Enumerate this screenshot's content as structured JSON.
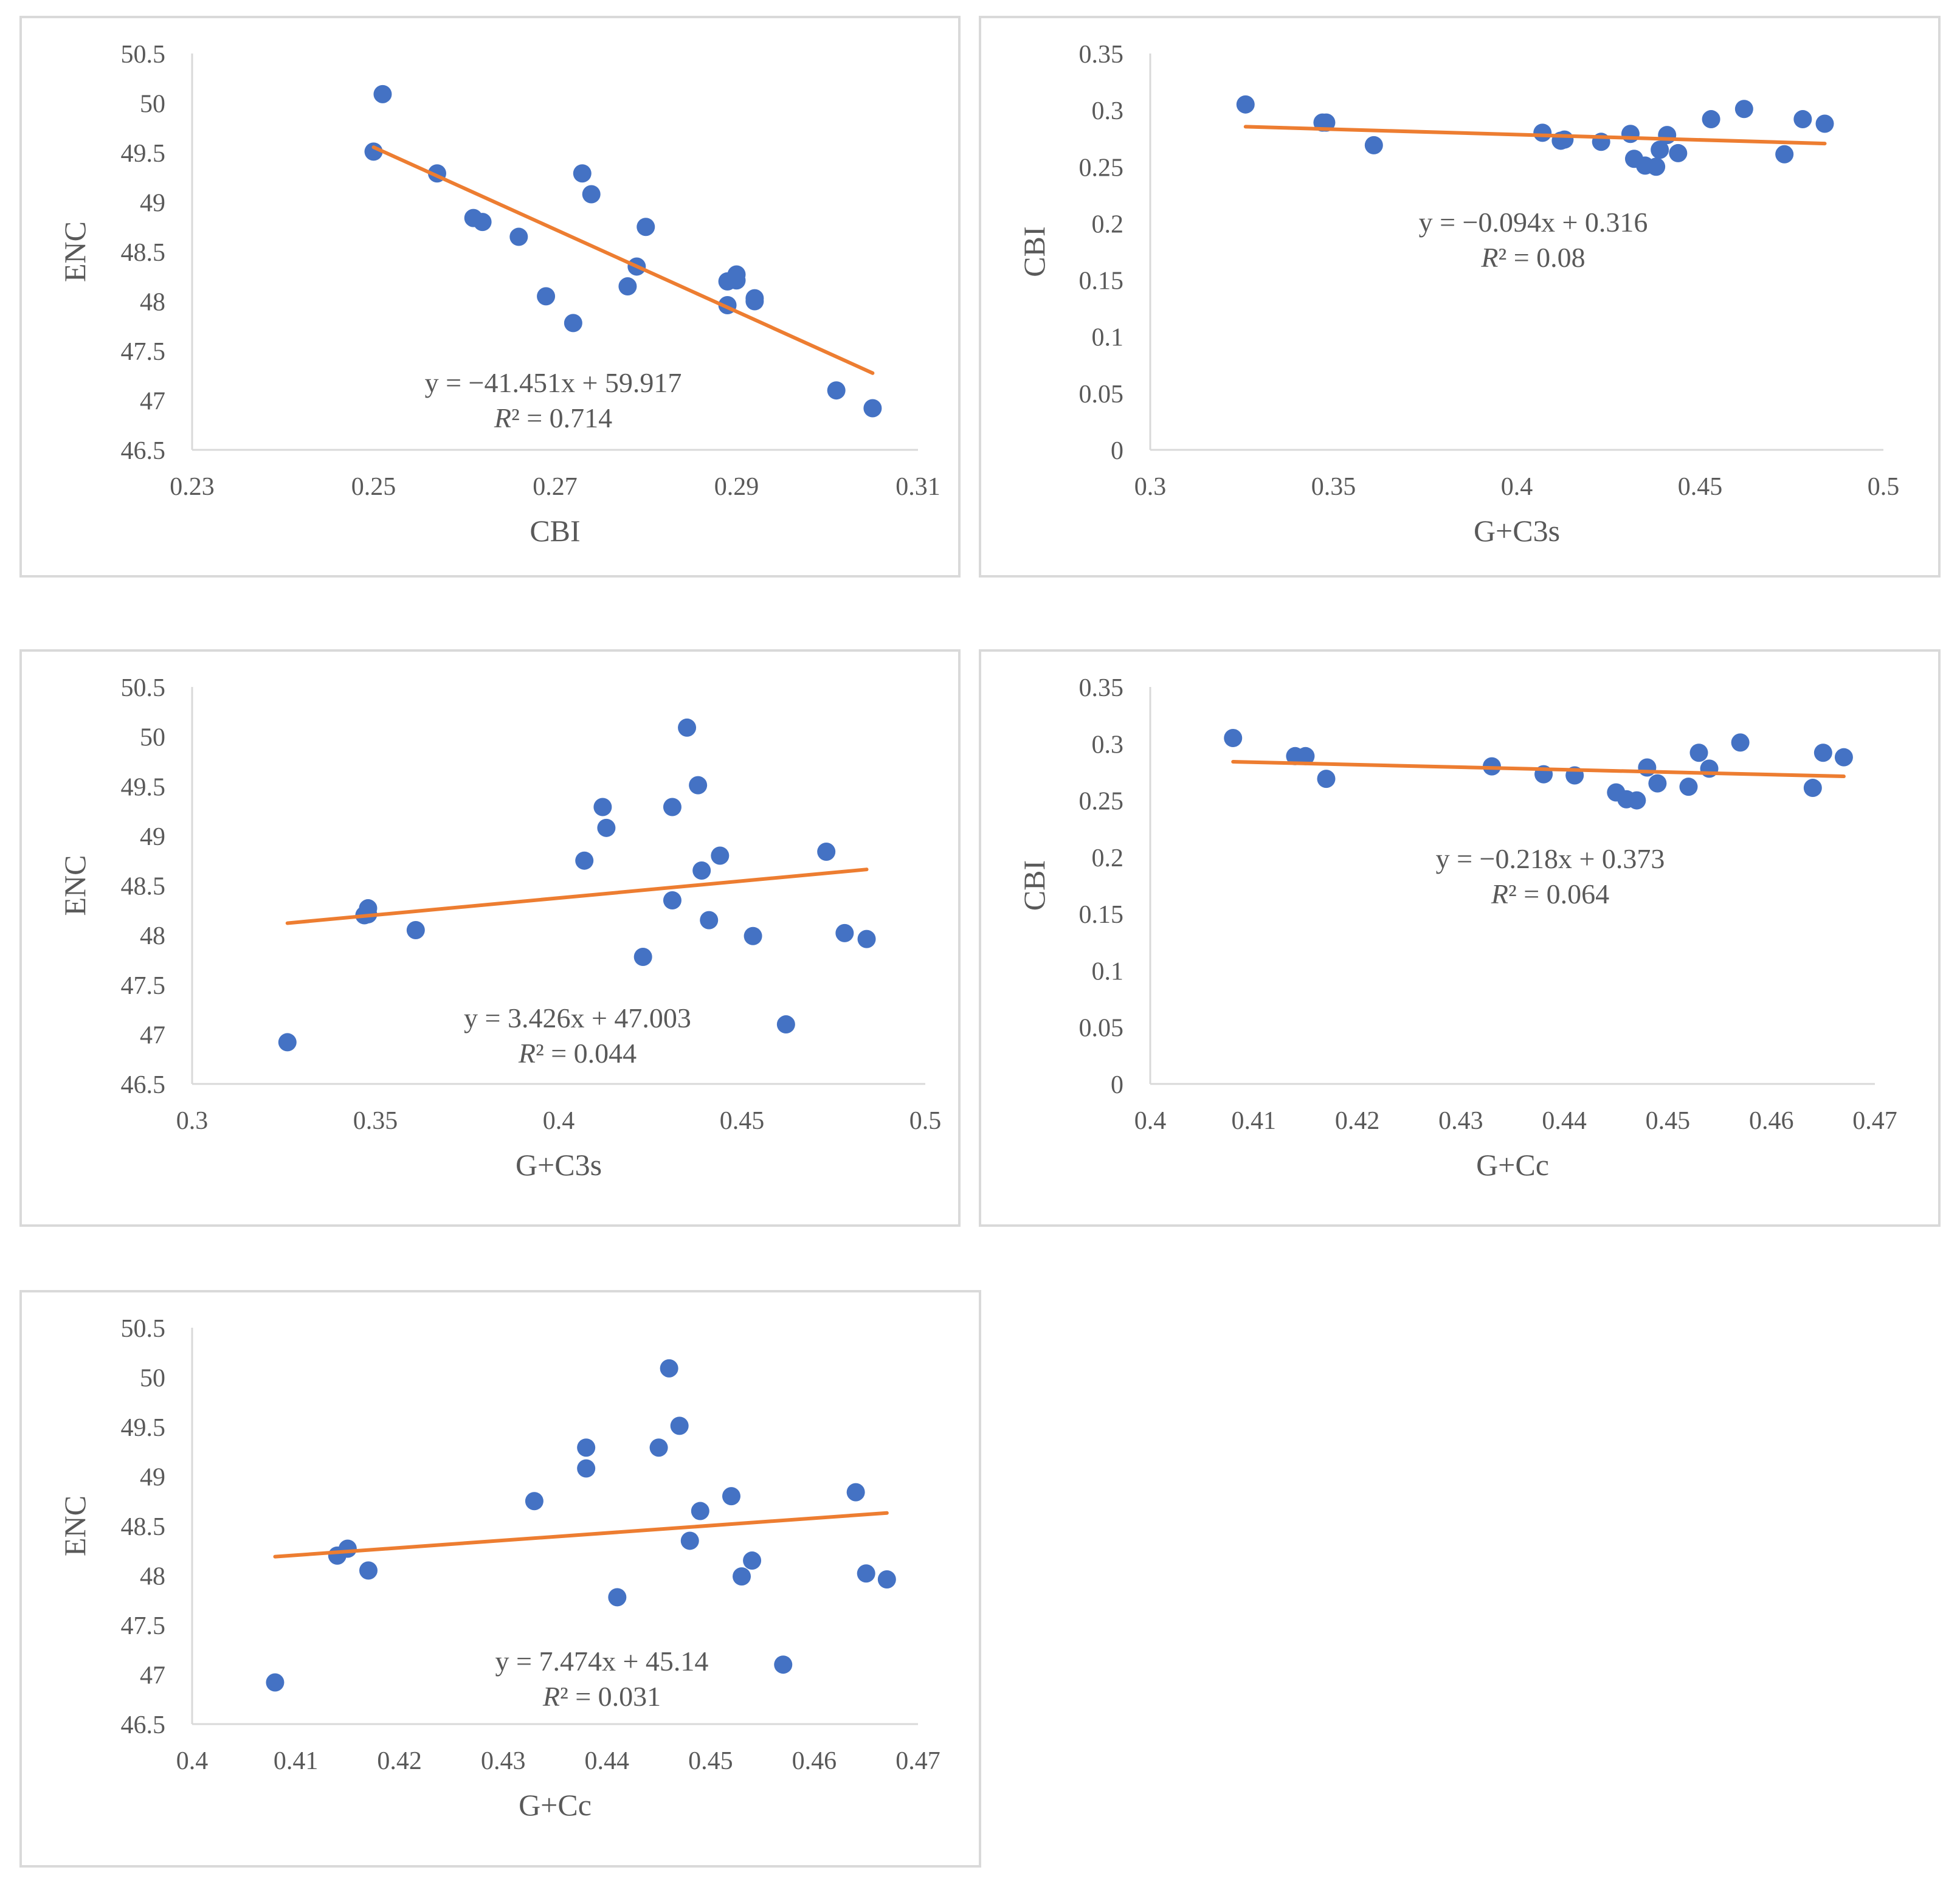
{
  "colors": {
    "points": "#4472c4",
    "trendline": "#ed7d31",
    "text": "#595959",
    "axis": "#d9d9d9"
  },
  "chart_data": [
    {
      "type": "scatter",
      "xlabel": "CBI",
      "ylabel": "ENC",
      "xlim": [
        0.23,
        0.31
      ],
      "ylim": [
        46.5,
        50.5
      ],
      "x_ticks": [
        "0.23",
        "0.25",
        "0.27",
        "0.29",
        "0.31"
      ],
      "y_ticks": [
        "46.5",
        "47",
        "47.5",
        "48",
        "48.5",
        "49",
        "49.5",
        "50",
        "50.5"
      ],
      "equation": "y = −41.451x + 59.917",
      "r2_label": "R",
      "r2_value": "² = 0.714",
      "trendline": {
        "slope": -41.451,
        "intercept": 59.917,
        "x_range": [
          0.25,
          0.305
        ]
      },
      "points": [
        [
          0.251,
          50.09
        ],
        [
          0.25,
          49.51
        ],
        [
          0.257,
          49.29
        ],
        [
          0.261,
          48.84
        ],
        [
          0.262,
          48.8
        ],
        [
          0.266,
          48.65
        ],
        [
          0.273,
          49.29
        ],
        [
          0.274,
          49.08
        ],
        [
          0.269,
          48.05
        ],
        [
          0.272,
          47.78
        ],
        [
          0.28,
          48.75
        ],
        [
          0.279,
          48.35
        ],
        [
          0.278,
          48.15
        ],
        [
          0.289,
          48.2
        ],
        [
          0.29,
          48.27
        ],
        [
          0.29,
          48.21
        ],
        [
          0.289,
          47.96
        ],
        [
          0.292,
          48.03
        ],
        [
          0.292,
          48.0
        ],
        [
          0.301,
          47.1
        ],
        [
          0.305,
          46.92
        ]
      ]
    },
    {
      "type": "scatter",
      "xlabel": "G+C3s",
      "ylabel": "CBI",
      "xlim": [
        0.3,
        0.5
      ],
      "ylim": [
        0,
        0.35
      ],
      "x_ticks": [
        "0.3",
        "0.35",
        "0.4",
        "0.45",
        "0.5"
      ],
      "y_ticks": [
        "0",
        "0.05",
        "0.1",
        "0.15",
        "0.2",
        "0.25",
        "0.3",
        "0.35"
      ],
      "equation": "y = −0.094x + 0.316",
      "r2_label": "R",
      "r2_value": "² = 0.08",
      "trendline": {
        "slope": -0.094,
        "intercept": 0.316,
        "x_range": [
          0.326,
          0.484
        ]
      },
      "points": [
        [
          0.326,
          0.305
        ],
        [
          0.347,
          0.289
        ],
        [
          0.348,
          0.289
        ],
        [
          0.361,
          0.269
        ],
        [
          0.407,
          0.28
        ],
        [
          0.412,
          0.273
        ],
        [
          0.413,
          0.274
        ],
        [
          0.423,
          0.272
        ],
        [
          0.431,
          0.279
        ],
        [
          0.432,
          0.257
        ],
        [
          0.435,
          0.251
        ],
        [
          0.438,
          0.25
        ],
        [
          0.439,
          0.265
        ],
        [
          0.441,
          0.278
        ],
        [
          0.444,
          0.262
        ],
        [
          0.453,
          0.292
        ],
        [
          0.462,
          0.301
        ],
        [
          0.473,
          0.261
        ],
        [
          0.478,
          0.292
        ],
        [
          0.484,
          0.288
        ]
      ]
    },
    {
      "type": "scatter",
      "xlabel": "G+C3s",
      "ylabel": "ENC",
      "xlim": [
        0.3,
        0.5
      ],
      "ylim": [
        46.5,
        50.5
      ],
      "x_ticks": [
        "0.3",
        "0.35",
        "0.4",
        "0.45",
        "0.5"
      ],
      "y_ticks": [
        "46.5",
        "47",
        "47.5",
        "48",
        "48.5",
        "49",
        "49.5",
        "50",
        "50.5"
      ],
      "equation": "y = 3.426x + 47.003",
      "r2_label": "R",
      "r2_value": "² = 0.044",
      "trendline": {
        "slope": 3.426,
        "intercept": 47.003,
        "x_range": [
          0.326,
          0.484
        ]
      },
      "points": [
        [
          0.326,
          46.92
        ],
        [
          0.347,
          48.2
        ],
        [
          0.348,
          48.27
        ],
        [
          0.348,
          48.21
        ],
        [
          0.361,
          48.05
        ],
        [
          0.407,
          48.75
        ],
        [
          0.412,
          49.29
        ],
        [
          0.413,
          49.08
        ],
        [
          0.423,
          47.78
        ],
        [
          0.431,
          49.29
        ],
        [
          0.431,
          48.35
        ],
        [
          0.435,
          50.09
        ],
        [
          0.438,
          49.51
        ],
        [
          0.439,
          48.65
        ],
        [
          0.441,
          48.15
        ],
        [
          0.444,
          48.8
        ],
        [
          0.453,
          47.99
        ],
        [
          0.462,
          47.1
        ],
        [
          0.473,
          48.84
        ],
        [
          0.478,
          48.02
        ],
        [
          0.484,
          47.96
        ]
      ]
    },
    {
      "type": "scatter",
      "xlabel": "G+Cc",
      "ylabel": "CBI",
      "xlim": [
        0.4,
        0.47
      ],
      "ylim": [
        0,
        0.35
      ],
      "x_ticks": [
        "0.4",
        "0.41",
        "0.42",
        "0.43",
        "0.44",
        "0.45",
        "0.46",
        "0.47"
      ],
      "y_ticks": [
        "0",
        "0.05",
        "0.1",
        "0.15",
        "0.2",
        "0.25",
        "0.3",
        "0.35"
      ],
      "equation": "y = −0.218x + 0.373",
      "r2_label": "R",
      "r2_value": "² = 0.064",
      "trendline": {
        "slope": -0.218,
        "intercept": 0.373,
        "x_range": [
          0.408,
          0.467
        ]
      },
      "points": [
        [
          0.408,
          0.305
        ],
        [
          0.414,
          0.289
        ],
        [
          0.415,
          0.289
        ],
        [
          0.417,
          0.269
        ],
        [
          0.433,
          0.28
        ],
        [
          0.438,
          0.273
        ],
        [
          0.441,
          0.272
        ],
        [
          0.445,
          0.257
        ],
        [
          0.446,
          0.251
        ],
        [
          0.447,
          0.25
        ],
        [
          0.448,
          0.279
        ],
        [
          0.449,
          0.265
        ],
        [
          0.452,
          0.262
        ],
        [
          0.453,
          0.292
        ],
        [
          0.454,
          0.278
        ],
        [
          0.457,
          0.301
        ],
        [
          0.464,
          0.261
        ],
        [
          0.465,
          0.292
        ],
        [
          0.467,
          0.288
        ]
      ]
    },
    {
      "type": "scatter",
      "xlabel": "G+Cc",
      "ylabel": "ENC",
      "xlim": [
        0.4,
        0.47
      ],
      "ylim": [
        46.5,
        50.5
      ],
      "x_ticks": [
        "0.4",
        "0.41",
        "0.42",
        "0.43",
        "0.44",
        "0.45",
        "0.46",
        "0.47"
      ],
      "y_ticks": [
        "46.5",
        "47",
        "47.5",
        "48",
        "48.5",
        "49",
        "49.5",
        "50",
        "50.5"
      ],
      "equation": "y = 7.474x + 45.14",
      "r2_label": "R",
      "r2_value": "² = 0.031",
      "trendline": {
        "slope": 7.474,
        "intercept": 45.14,
        "x_range": [
          0.408,
          0.467
        ]
      },
      "points": [
        [
          0.408,
          46.92
        ],
        [
          0.414,
          48.2
        ],
        [
          0.415,
          48.27
        ],
        [
          0.417,
          48.05
        ],
        [
          0.433,
          48.75
        ],
        [
          0.438,
          49.29
        ],
        [
          0.438,
          49.08
        ],
        [
          0.441,
          47.78
        ],
        [
          0.445,
          49.29
        ],
        [
          0.446,
          50.09
        ],
        [
          0.447,
          49.51
        ],
        [
          0.448,
          48.35
        ],
        [
          0.449,
          48.65
        ],
        [
          0.452,
          48.8
        ],
        [
          0.453,
          47.99
        ],
        [
          0.454,
          48.15
        ],
        [
          0.457,
          47.1
        ],
        [
          0.464,
          48.84
        ],
        [
          0.465,
          48.02
        ],
        [
          0.467,
          47.96
        ]
      ]
    }
  ]
}
